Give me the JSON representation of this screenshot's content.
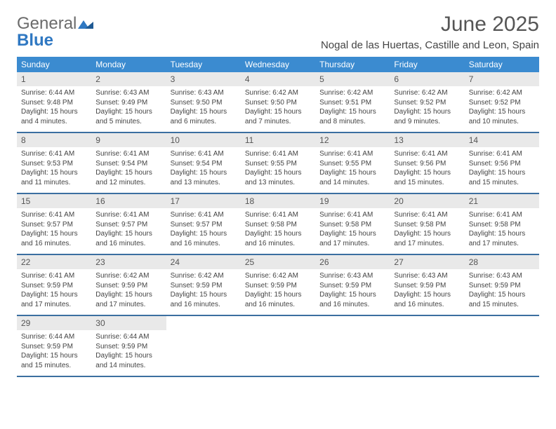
{
  "logo": {
    "text_general": "General",
    "text_blue": "Blue"
  },
  "header": {
    "title": "June 2025",
    "location": "Nogal de las Huertas, Castille and Leon, Spain"
  },
  "colors": {
    "header_bg": "#3b8bd0",
    "header_text": "#ffffff",
    "daynum_bg": "#e9e9e9",
    "week_border": "#3b6fa0",
    "logo_gray": "#6b6b6b",
    "logo_blue": "#2f78c2"
  },
  "weekdays": [
    "Sunday",
    "Monday",
    "Tuesday",
    "Wednesday",
    "Thursday",
    "Friday",
    "Saturday"
  ],
  "weeks": [
    [
      {
        "n": "1",
        "sr": "Sunrise: 6:44 AM",
        "ss": "Sunset: 9:48 PM",
        "dl": "Daylight: 15 hours and 4 minutes."
      },
      {
        "n": "2",
        "sr": "Sunrise: 6:43 AM",
        "ss": "Sunset: 9:49 PM",
        "dl": "Daylight: 15 hours and 5 minutes."
      },
      {
        "n": "3",
        "sr": "Sunrise: 6:43 AM",
        "ss": "Sunset: 9:50 PM",
        "dl": "Daylight: 15 hours and 6 minutes."
      },
      {
        "n": "4",
        "sr": "Sunrise: 6:42 AM",
        "ss": "Sunset: 9:50 PM",
        "dl": "Daylight: 15 hours and 7 minutes."
      },
      {
        "n": "5",
        "sr": "Sunrise: 6:42 AM",
        "ss": "Sunset: 9:51 PM",
        "dl": "Daylight: 15 hours and 8 minutes."
      },
      {
        "n": "6",
        "sr": "Sunrise: 6:42 AM",
        "ss": "Sunset: 9:52 PM",
        "dl": "Daylight: 15 hours and 9 minutes."
      },
      {
        "n": "7",
        "sr": "Sunrise: 6:42 AM",
        "ss": "Sunset: 9:52 PM",
        "dl": "Daylight: 15 hours and 10 minutes."
      }
    ],
    [
      {
        "n": "8",
        "sr": "Sunrise: 6:41 AM",
        "ss": "Sunset: 9:53 PM",
        "dl": "Daylight: 15 hours and 11 minutes."
      },
      {
        "n": "9",
        "sr": "Sunrise: 6:41 AM",
        "ss": "Sunset: 9:54 PM",
        "dl": "Daylight: 15 hours and 12 minutes."
      },
      {
        "n": "10",
        "sr": "Sunrise: 6:41 AM",
        "ss": "Sunset: 9:54 PM",
        "dl": "Daylight: 15 hours and 13 minutes."
      },
      {
        "n": "11",
        "sr": "Sunrise: 6:41 AM",
        "ss": "Sunset: 9:55 PM",
        "dl": "Daylight: 15 hours and 13 minutes."
      },
      {
        "n": "12",
        "sr": "Sunrise: 6:41 AM",
        "ss": "Sunset: 9:55 PM",
        "dl": "Daylight: 15 hours and 14 minutes."
      },
      {
        "n": "13",
        "sr": "Sunrise: 6:41 AM",
        "ss": "Sunset: 9:56 PM",
        "dl": "Daylight: 15 hours and 15 minutes."
      },
      {
        "n": "14",
        "sr": "Sunrise: 6:41 AM",
        "ss": "Sunset: 9:56 PM",
        "dl": "Daylight: 15 hours and 15 minutes."
      }
    ],
    [
      {
        "n": "15",
        "sr": "Sunrise: 6:41 AM",
        "ss": "Sunset: 9:57 PM",
        "dl": "Daylight: 15 hours and 16 minutes."
      },
      {
        "n": "16",
        "sr": "Sunrise: 6:41 AM",
        "ss": "Sunset: 9:57 PM",
        "dl": "Daylight: 15 hours and 16 minutes."
      },
      {
        "n": "17",
        "sr": "Sunrise: 6:41 AM",
        "ss": "Sunset: 9:57 PM",
        "dl": "Daylight: 15 hours and 16 minutes."
      },
      {
        "n": "18",
        "sr": "Sunrise: 6:41 AM",
        "ss": "Sunset: 9:58 PM",
        "dl": "Daylight: 15 hours and 16 minutes."
      },
      {
        "n": "19",
        "sr": "Sunrise: 6:41 AM",
        "ss": "Sunset: 9:58 PM",
        "dl": "Daylight: 15 hours and 17 minutes."
      },
      {
        "n": "20",
        "sr": "Sunrise: 6:41 AM",
        "ss": "Sunset: 9:58 PM",
        "dl": "Daylight: 15 hours and 17 minutes."
      },
      {
        "n": "21",
        "sr": "Sunrise: 6:41 AM",
        "ss": "Sunset: 9:58 PM",
        "dl": "Daylight: 15 hours and 17 minutes."
      }
    ],
    [
      {
        "n": "22",
        "sr": "Sunrise: 6:41 AM",
        "ss": "Sunset: 9:59 PM",
        "dl": "Daylight: 15 hours and 17 minutes."
      },
      {
        "n": "23",
        "sr": "Sunrise: 6:42 AM",
        "ss": "Sunset: 9:59 PM",
        "dl": "Daylight: 15 hours and 17 minutes."
      },
      {
        "n": "24",
        "sr": "Sunrise: 6:42 AM",
        "ss": "Sunset: 9:59 PM",
        "dl": "Daylight: 15 hours and 16 minutes."
      },
      {
        "n": "25",
        "sr": "Sunrise: 6:42 AM",
        "ss": "Sunset: 9:59 PM",
        "dl": "Daylight: 15 hours and 16 minutes."
      },
      {
        "n": "26",
        "sr": "Sunrise: 6:43 AM",
        "ss": "Sunset: 9:59 PM",
        "dl": "Daylight: 15 hours and 16 minutes."
      },
      {
        "n": "27",
        "sr": "Sunrise: 6:43 AM",
        "ss": "Sunset: 9:59 PM",
        "dl": "Daylight: 15 hours and 16 minutes."
      },
      {
        "n": "28",
        "sr": "Sunrise: 6:43 AM",
        "ss": "Sunset: 9:59 PM",
        "dl": "Daylight: 15 hours and 15 minutes."
      }
    ],
    [
      {
        "n": "29",
        "sr": "Sunrise: 6:44 AM",
        "ss": "Sunset: 9:59 PM",
        "dl": "Daylight: 15 hours and 15 minutes."
      },
      {
        "n": "30",
        "sr": "Sunrise: 6:44 AM",
        "ss": "Sunset: 9:59 PM",
        "dl": "Daylight: 15 hours and 14 minutes."
      },
      null,
      null,
      null,
      null,
      null
    ]
  ]
}
